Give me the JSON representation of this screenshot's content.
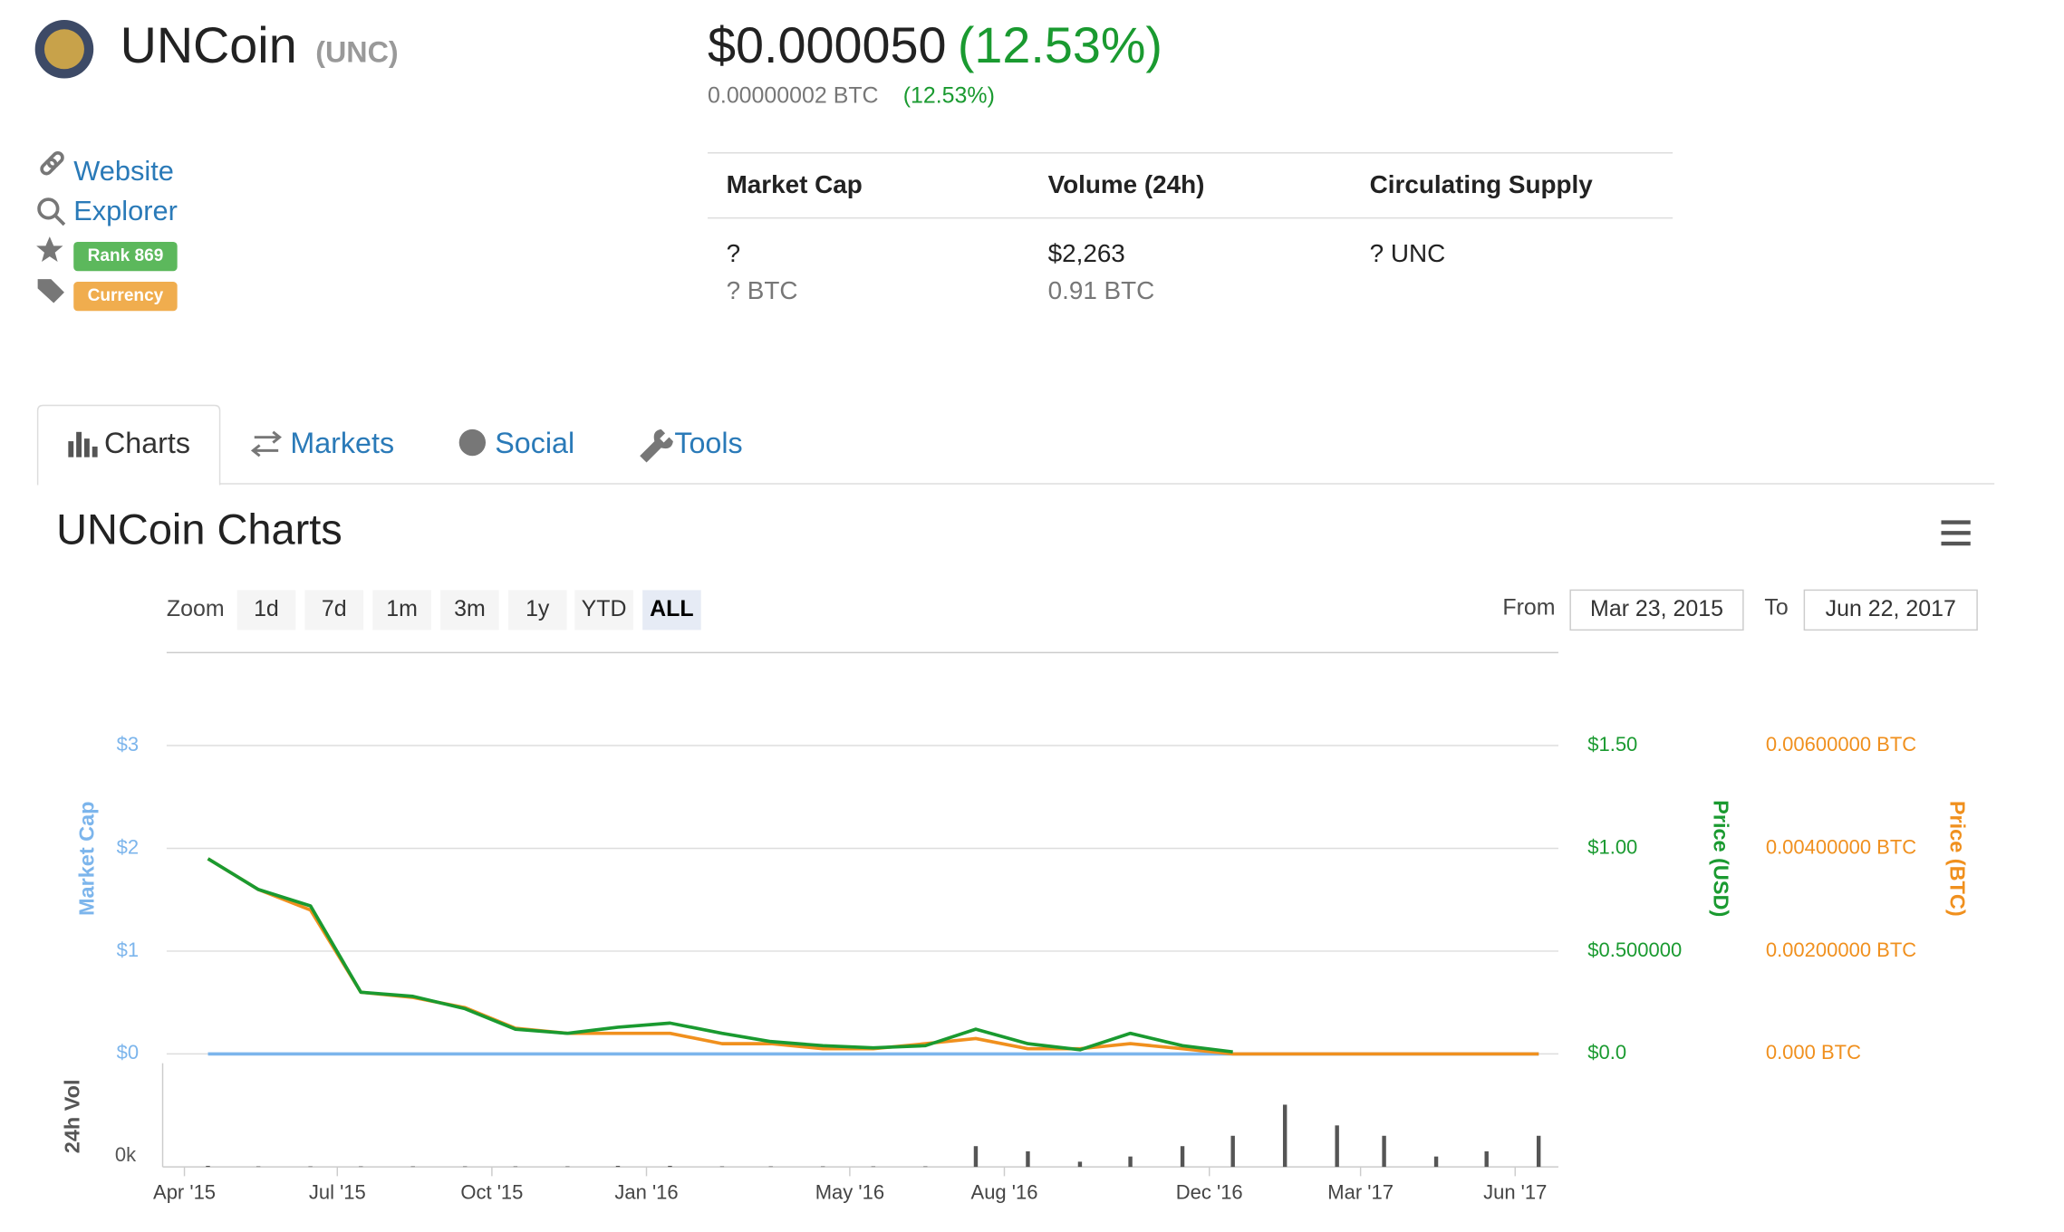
{
  "header": {
    "name": "UNCoin",
    "symbol": "(UNC)",
    "price_usd": "$0.000050",
    "change_usd": "(12.53%)",
    "price_btc": "0.00000002 BTC",
    "change_btc": "(12.53%)"
  },
  "links": [
    "Website",
    "Explorer"
  ],
  "badges": {
    "rank": "Rank 869",
    "tag": "Currency"
  },
  "stats": [
    {
      "label": "Market Cap",
      "lines": [
        "?",
        "? BTC"
      ]
    },
    {
      "label": "Volume (24h)",
      "lines": [
        "$2,263",
        "0.91 BTC"
      ]
    },
    {
      "label": "Circulating Supply",
      "lines": [
        "? UNC"
      ]
    }
  ],
  "tabs": [
    "Charts",
    "Markets",
    "Social",
    "Tools"
  ],
  "chart_title": "UNCoin Charts",
  "zoom": {
    "label": "Zoom",
    "buttons": [
      "1d",
      "7d",
      "1m",
      "3m",
      "1y",
      "YTD",
      "ALL"
    ],
    "active": 6
  },
  "range": {
    "from_label": "From",
    "from": "Mar 23, 2015",
    "to_label": "To",
    "to": "Jun 22, 2017"
  },
  "chart_data": {
    "type": "line",
    "x": [
      "2015-04",
      "2015-05",
      "2015-06",
      "2015-07",
      "2015-08",
      "2015-09",
      "2015-10",
      "2015-11",
      "2015-12",
      "2016-01",
      "2016-02",
      "2016-03",
      "2016-04",
      "2016-05",
      "2016-06",
      "2016-07",
      "2016-08",
      "2016-09",
      "2016-10",
      "2016-11",
      "2016-12",
      "2017-01",
      "2017-02",
      "2017-03",
      "2017-04",
      "2017-05",
      "2017-06"
    ],
    "xlim": [
      "2015-03-23",
      "2017-06-22"
    ],
    "xticks": [
      {
        "value": "2015-04-01",
        "label": "Apr '15"
      },
      {
        "value": "2015-07-01",
        "label": "Jul '15"
      },
      {
        "value": "2015-10-01",
        "label": "Oct '15"
      },
      {
        "value": "2016-01-01",
        "label": "Jan '16"
      },
      {
        "value": "2016-05-01",
        "label": "May '16"
      },
      {
        "value": "2016-08-01",
        "label": "Aug '16"
      },
      {
        "value": "2016-12-01",
        "label": "Dec '16"
      },
      {
        "value": "2017-03-01",
        "label": "Mar '17"
      },
      {
        "value": "2017-06-01",
        "label": "Jun '17"
      }
    ],
    "ylabel": "Market Cap",
    "ylim": [
      0,
      3
    ],
    "yticks": [
      {
        "value": 0,
        "label": "$0"
      },
      {
        "value": 1,
        "label": "$1"
      },
      {
        "value": 2,
        "label": "$2"
      },
      {
        "value": 3,
        "label": "$3"
      }
    ],
    "y2label": "Price (USD)",
    "y2lim": [
      0,
      1.5
    ],
    "y2ticks": [
      {
        "value": 0,
        "label": "$0.0"
      },
      {
        "value": 0.5,
        "label": "$0.500000"
      },
      {
        "value": 1,
        "label": "$1.00"
      },
      {
        "value": 1.5,
        "label": "$1.50"
      }
    ],
    "y3label": "Price (BTC)",
    "y3lim": [
      0,
      0.006
    ],
    "y3ticks": [
      {
        "value": 0,
        "label": "0.000 BTC"
      },
      {
        "value": 0.002,
        "label": "0.00200000 BTC"
      },
      {
        "value": 0.004,
        "label": "0.00400000 BTC"
      },
      {
        "value": 0.006,
        "label": "0.00600000 BTC"
      }
    ],
    "vol_label": "24h Vol",
    "vol_ylim": [
      0,
      1000
    ],
    "vol_ticks": [
      {
        "value": 0,
        "label": "0k"
      }
    ],
    "grid": true,
    "series": [
      {
        "name": "Market Cap",
        "color": "#7cb5ec",
        "axis": "y",
        "values": [
          0,
          0,
          0,
          0,
          0,
          0,
          0,
          0,
          0,
          0,
          0,
          0,
          0,
          0,
          0,
          0,
          0,
          0,
          0,
          0,
          0,
          0,
          0,
          0,
          0,
          0,
          0
        ]
      },
      {
        "name": "Price (USD)",
        "color": "#1a9a30",
        "axis": "y2",
        "values": [
          0.95,
          0.8,
          0.72,
          0.3,
          0.28,
          0.22,
          0.12,
          0.1,
          0.13,
          0.15,
          0.1,
          0.06,
          0.04,
          0.03,
          0.04,
          0.12,
          0.05,
          0.02,
          0.1,
          0.04,
          0.01,
          null,
          null,
          null,
          null,
          null,
          null
        ]
      },
      {
        "name": "Price (BTC)",
        "color": "#f0901e",
        "axis": "y3",
        "values": [
          0.0038,
          0.0032,
          0.0028,
          0.0012,
          0.0011,
          0.0009,
          0.0005,
          0.0004,
          0.0004,
          0.0004,
          0.0002,
          0.0002,
          0.0001,
          0.0001,
          0.0002,
          0.0003,
          0.0001,
          0.0001,
          0.0002,
          0.0001,
          0,
          0,
          0,
          0,
          0,
          0,
          0
        ]
      },
      {
        "name": "24h Vol",
        "color": "#555555",
        "axis": "vol",
        "values": [
          10,
          5,
          5,
          5,
          5,
          5,
          5,
          5,
          10,
          10,
          5,
          5,
          5,
          5,
          5,
          200,
          150,
          50,
          100,
          200,
          300,
          600,
          400,
          300,
          100,
          150,
          300
        ]
      }
    ]
  }
}
